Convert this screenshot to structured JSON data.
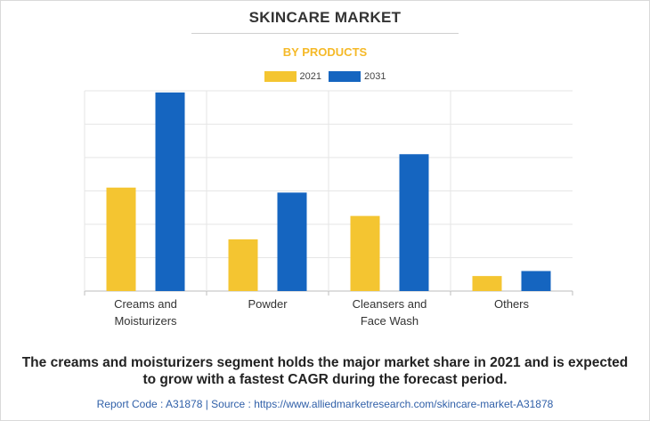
{
  "title": "SKINCARE MARKET",
  "subtitle": "BY PRODUCTS",
  "caption_line1": "The creams and moisturizers segment holds the major market share in 2021 and is expected",
  "caption_line2": "to grow with a fastest CAGR during the forecast period.",
  "source": "Report Code : A31878  |  Source : https://www.alliedmarketresearch.com/skincare-market-A31878",
  "colors": {
    "2021": "#f4c531",
    "2031": "#1565c0"
  },
  "chart_data": {
    "type": "bar",
    "categories": [
      [
        "Creams and",
        "Moisturizers"
      ],
      [
        "Powder"
      ],
      [
        "Cleansers and",
        "Face Wash"
      ],
      [
        "Others"
      ]
    ],
    "series": [
      {
        "name": "2021",
        "values": [
          31,
          15.5,
          22.5,
          4.5
        ]
      },
      {
        "name": "2031",
        "values": [
          59.5,
          29.5,
          41,
          6
        ]
      }
    ],
    "ylim": [
      0,
      60
    ],
    "grid": true,
    "legend": "top-center",
    "xlabel": "",
    "ylabel": ""
  }
}
